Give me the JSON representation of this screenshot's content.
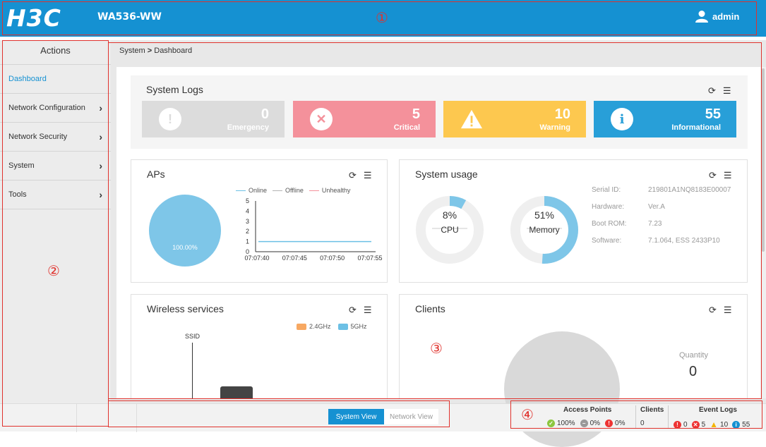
{
  "header": {
    "logo": "H3C",
    "product": "WA536-WW",
    "user": "admin"
  },
  "markers": {
    "m1": "①",
    "m2": "②",
    "m3": "③",
    "m4": "④"
  },
  "sidebar": {
    "title": "Actions",
    "items": [
      {
        "label": "Dashboard"
      },
      {
        "label": "Network Configuration"
      },
      {
        "label": "Network Security"
      },
      {
        "label": "System"
      },
      {
        "label": "Tools"
      }
    ]
  },
  "breadcrumb": {
    "root": "System",
    "sep": ">",
    "page": "Dashboard"
  },
  "system_logs": {
    "title": "System Logs",
    "tiles": [
      {
        "count": "0",
        "label": "Emergency",
        "color": "#dcdcdc"
      },
      {
        "count": "5",
        "label": "Critical",
        "color": "#f4919b"
      },
      {
        "count": "10",
        "label": "Warning",
        "color": "#fdc84f"
      },
      {
        "count": "55",
        "label": "Informational",
        "color": "#289fd8"
      }
    ]
  },
  "aps": {
    "title": "APs",
    "pie_label": "100.00%",
    "legend": [
      "Online",
      "Offline",
      "Unhealthy"
    ],
    "legend_colors": [
      "#6cc0e5",
      "#b3b3b3",
      "#f4919b"
    ]
  },
  "chart_data": {
    "type": "line",
    "x": [
      "07:07:40",
      "07:07:45",
      "07:07:50",
      "07:07:55"
    ],
    "series": [
      {
        "name": "Online",
        "values": [
          1,
          1,
          1,
          1
        ]
      },
      {
        "name": "Offline",
        "values": [
          0,
          0,
          0,
          0
        ]
      },
      {
        "name": "Unhealthy",
        "values": [
          0,
          0,
          0,
          0
        ]
      }
    ],
    "ylim": [
      0,
      5
    ],
    "yticks": [
      "0",
      "1",
      "2",
      "3",
      "4",
      "5"
    ]
  },
  "system_usage": {
    "title": "System usage",
    "cpu": {
      "value": "8%",
      "label": "CPU",
      "fraction": 0.08
    },
    "memory": {
      "value": "51%",
      "label": "Memory",
      "fraction": 0.51
    },
    "info": [
      {
        "label": "Serial ID:",
        "value": "219801A1NQ8183E00007"
      },
      {
        "label": "Hardware:",
        "value": "Ver.A"
      },
      {
        "label": "Boot ROM:",
        "value": "7.23"
      },
      {
        "label": "Software:",
        "value": "7.1.064, ESS 2433P10"
      }
    ]
  },
  "wireless": {
    "title": "Wireless services",
    "legend": [
      "2.4GHz",
      "5GHz"
    ],
    "legend_colors": [
      "#f7a862",
      "#6cc0e5"
    ],
    "axis_label": "SSID"
  },
  "clients": {
    "title": "Clients",
    "quantity_label": "Quantity",
    "quantity": "0"
  },
  "footer": {
    "system_view": "System View",
    "network_view": "Network View",
    "access_points_title": "Access Points",
    "ap_online": "100%",
    "ap_offline": "0%",
    "ap_fault": "0%",
    "clients_title": "Clients",
    "clients_value": "0",
    "event_logs_title": "Event Logs",
    "ev_emergency": "0",
    "ev_critical": "5",
    "ev_warning": "10",
    "ev_info": "55"
  }
}
